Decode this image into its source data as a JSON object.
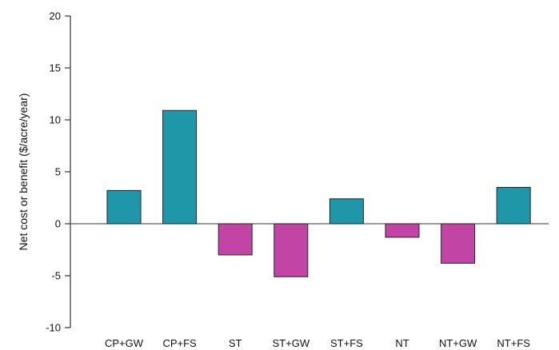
{
  "chart_data": {
    "type": "bar",
    "title": "",
    "xlabel": "",
    "ylabel": "Net cost or benefit ($/acre/year)",
    "ylim": [
      -10,
      20
    ],
    "yticks": [
      -10,
      -5,
      0,
      5,
      10,
      15,
      20
    ],
    "grid": false,
    "categories": [
      "CP+GW",
      "CP+FS",
      "ST",
      "ST+GW",
      "ST+FS",
      "NT",
      "NT+GW",
      "NT+FS"
    ],
    "values": [
      3.2,
      10.9,
      -3.0,
      -5.1,
      2.4,
      -1.3,
      -3.8,
      3.5
    ],
    "colors": {
      "positive": "#1f97a8",
      "negative": "#c245a6",
      "axis": "#333333"
    }
  }
}
